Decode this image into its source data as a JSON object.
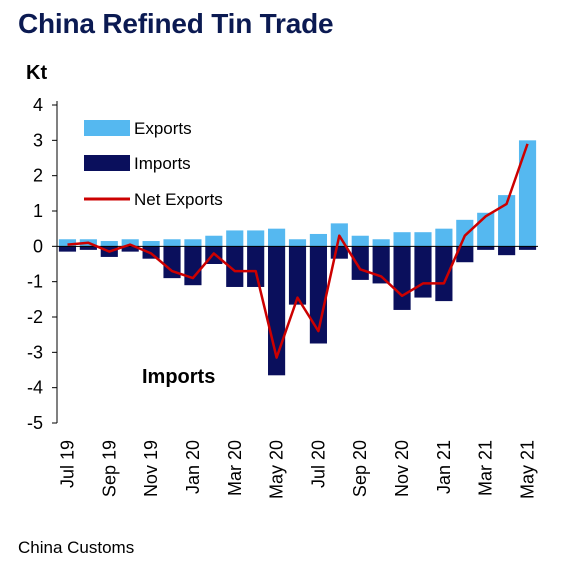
{
  "title": "China Refined Tin Trade",
  "unit_label": "Kt",
  "source": "China Customs",
  "colors": {
    "exports": "#55b8f0",
    "imports": "#0a0f5c",
    "net": "#cc0000",
    "title": "#0b1a52"
  },
  "chart_data": {
    "type": "bar",
    "title": "China Refined Tin Trade",
    "ylabel": "Kt",
    "ylim": [
      -5,
      4
    ],
    "yticks": [
      4,
      3,
      2,
      1,
      0,
      -1,
      -2,
      -3,
      -4,
      -5
    ],
    "grid": false,
    "legend_position": "top-left",
    "annotation": "Imports",
    "categories": [
      "Jul 19",
      "Aug 19",
      "Sep 19",
      "Oct 19",
      "Nov 19",
      "Dec 19",
      "Jan 20",
      "Feb 20",
      "Mar 20",
      "Apr 20",
      "May 20",
      "Jun 20",
      "Jul 20",
      "Aug 20",
      "Sep 20",
      "Oct 20",
      "Nov 20",
      "Dec 20",
      "Jan 21",
      "Feb 21",
      "Mar 21",
      "Apr 21",
      "May 21"
    ],
    "xtick_labels": [
      "Jul 19",
      "",
      "Sep 19",
      "",
      "Nov 19",
      "",
      "Jan 20",
      "",
      "Mar 20",
      "",
      "May 20",
      "",
      "Jul 20",
      "",
      "Sep 20",
      "",
      "Nov 20",
      "",
      "Jan 21",
      "",
      "Mar 21",
      "",
      "May 21"
    ],
    "series": [
      {
        "name": "Exports",
        "kind": "bar",
        "values": [
          0.2,
          0.2,
          0.15,
          0.2,
          0.15,
          0.2,
          0.2,
          0.3,
          0.45,
          0.45,
          0.5,
          0.2,
          0.35,
          0.65,
          0.3,
          0.2,
          0.4,
          0.4,
          0.5,
          0.75,
          0.95,
          1.45,
          3.0
        ]
      },
      {
        "name": "Imports",
        "kind": "bar",
        "values": [
          -0.15,
          -0.1,
          -0.3,
          -0.15,
          -0.35,
          -0.9,
          -1.1,
          -0.5,
          -1.15,
          -1.15,
          -3.65,
          -1.65,
          -2.75,
          -0.35,
          -0.95,
          -1.05,
          -1.8,
          -1.45,
          -1.55,
          -0.45,
          -0.1,
          -0.25,
          -0.1
        ]
      },
      {
        "name": "Net Exports",
        "kind": "line",
        "values": [
          0.05,
          0.1,
          -0.15,
          0.05,
          -0.2,
          -0.7,
          -0.9,
          -0.2,
          -0.7,
          -0.7,
          -3.15,
          -1.45,
          -2.4,
          0.3,
          -0.65,
          -0.85,
          -1.4,
          -1.05,
          -1.05,
          0.3,
          0.85,
          1.2,
          2.9
        ]
      }
    ]
  }
}
